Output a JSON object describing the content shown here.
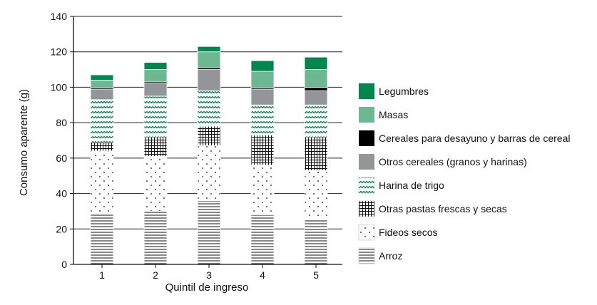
{
  "chart_data": {
    "type": "bar",
    "stacked": true,
    "title": "",
    "xlabel": "Quintil de ingreso",
    "ylabel": "Consumo aparente (g)",
    "ylim": [
      0,
      140
    ],
    "yticks": [
      0,
      20,
      40,
      60,
      80,
      100,
      120,
      140
    ],
    "grid": true,
    "legend_position": "right",
    "categories": [
      "1",
      "2",
      "3",
      "4",
      "5"
    ],
    "series": [
      {
        "name": "Arroz",
        "pattern": "horizontal-lines",
        "values": [
          29,
          30,
          36,
          28,
          26
        ]
      },
      {
        "name": "Fideos secos",
        "pattern": "dots",
        "values": [
          35,
          31,
          31,
          28,
          27
        ]
      },
      {
        "name": "Otras pastas frescas y secas",
        "pattern": "crosshatch",
        "values": [
          5,
          11,
          11,
          17,
          19
        ]
      },
      {
        "name": "Harina de trigo",
        "pattern": "wave",
        "color": "#0e8a5c",
        "values": [
          24,
          23,
          20,
          17,
          18
        ]
      },
      {
        "name": "Otros cereales (granos y harinas)",
        "color": "#939598",
        "values": [
          6,
          7,
          12,
          9,
          8
        ]
      },
      {
        "name": "Cereales para desayuno y barras de cereal",
        "color": "#000000",
        "values": [
          1,
          1,
          1,
          1,
          2
        ]
      },
      {
        "name": "Masas",
        "color": "#6db793",
        "values": [
          4,
          7,
          9,
          9,
          10
        ]
      },
      {
        "name": "Legumbres",
        "color": "#00874f",
        "values": [
          3,
          4,
          3,
          6,
          7
        ]
      }
    ]
  }
}
